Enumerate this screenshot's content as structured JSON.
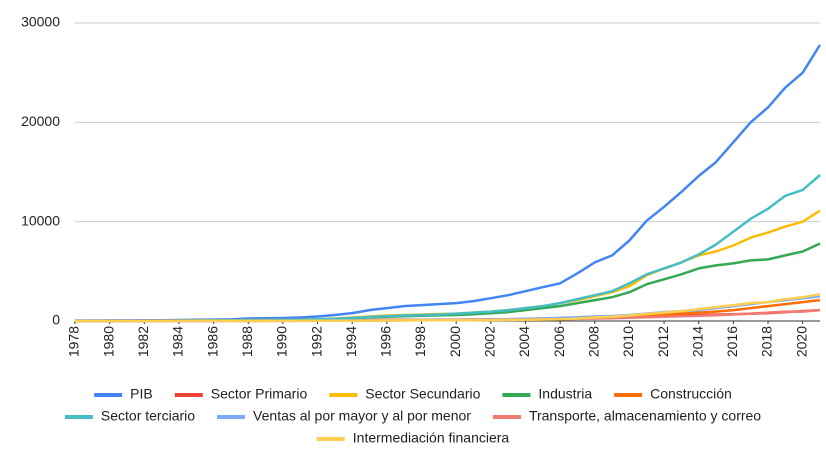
{
  "chart_data": {
    "type": "line",
    "x": [
      1978,
      1979,
      1980,
      1981,
      1982,
      1983,
      1984,
      1985,
      1986,
      1987,
      1988,
      1989,
      1990,
      1991,
      1992,
      1993,
      1994,
      1995,
      1996,
      1997,
      1998,
      1999,
      2000,
      2001,
      2002,
      2003,
      2004,
      2005,
      2006,
      2007,
      2008,
      2009,
      2010,
      2011,
      2012,
      2013,
      2014,
      2015,
      2016,
      2017,
      2018,
      2019,
      2020,
      2021
    ],
    "xlim": [
      1978,
      2021
    ],
    "xticks": [
      1978,
      1980,
      1982,
      1984,
      1986,
      1988,
      1990,
      1992,
      1994,
      1996,
      1998,
      2000,
      2002,
      2004,
      2006,
      2008,
      2010,
      2012,
      2014,
      2016,
      2018,
      2020
    ],
    "ylim": [
      0,
      30000
    ],
    "yticks": [
      0,
      10000,
      20000,
      30000
    ],
    "grid": true,
    "legend": "bottom",
    "series": [
      {
        "name": "PIB",
        "color": "#4285f4",
        "values": [
          50,
          55,
          60,
          65,
          75,
          85,
          100,
          120,
          140,
          160,
          250,
          280,
          300,
          350,
          450,
          600,
          800,
          1100,
          1300,
          1500,
          1600,
          1700,
          1800,
          2000,
          2300,
          2600,
          3000,
          3400,
          3800,
          4800,
          5900,
          6600,
          8100,
          10100,
          11500,
          13000,
          14600,
          16000,
          18000,
          20000,
          21500,
          23500,
          25000,
          27800
        ]
      },
      {
        "name": "Sector Primario",
        "color": "#ea4335",
        "values": [
          10,
          12,
          14,
          15,
          17,
          19,
          22,
          25,
          27,
          30,
          35,
          38,
          45,
          50,
          55,
          60,
          80,
          100,
          120,
          130,
          135,
          140,
          145,
          150,
          160,
          170,
          210,
          230,
          250,
          280,
          320,
          350,
          400,
          470,
          520,
          560,
          600,
          640,
          680,
          720,
          800,
          900,
          1000,
          1100
        ]
      },
      {
        "name": "Sector Secundario",
        "color": "#fbbc04",
        "values": [
          25,
          28,
          30,
          32,
          35,
          40,
          45,
          55,
          65,
          75,
          90,
          100,
          110,
          130,
          170,
          250,
          350,
          450,
          550,
          600,
          650,
          700,
          750,
          850,
          950,
          1100,
          1300,
          1500,
          1800,
          2100,
          2500,
          2900,
          3500,
          4600,
          5300,
          5900,
          6600,
          7000,
          7600,
          8400,
          8900,
          9500,
          10000,
          11100
        ]
      },
      {
        "name": "Industria",
        "color": "#34a853",
        "values": [
          20,
          22,
          24,
          26,
          28,
          32,
          36,
          42,
          50,
          60,
          70,
          80,
          90,
          110,
          140,
          200,
          280,
          360,
          430,
          480,
          520,
          560,
          600,
          680,
          780,
          900,
          1100,
          1300,
          1500,
          1800,
          2100,
          2400,
          2900,
          3700,
          4200,
          4700,
          5300,
          5600,
          5800,
          6100,
          6200,
          6600,
          7000,
          7800
        ]
      },
      {
        "name": "Construcción",
        "color": "#ff6d01",
        "values": [
          3,
          3,
          4,
          4,
          5,
          6,
          7,
          8,
          10,
          12,
          14,
          15,
          16,
          20,
          25,
          35,
          45,
          55,
          65,
          70,
          75,
          80,
          85,
          95,
          110,
          130,
          150,
          180,
          210,
          260,
          320,
          380,
          450,
          550,
          650,
          750,
          850,
          950,
          1100,
          1300,
          1500,
          1700,
          1900,
          2100
        ]
      },
      {
        "name": "Sector terciario",
        "color": "#46bdc6",
        "values": [
          18,
          20,
          22,
          25,
          28,
          30,
          40,
          50,
          60,
          70,
          90,
          100,
          110,
          130,
          170,
          220,
          300,
          400,
          480,
          550,
          600,
          650,
          750,
          850,
          950,
          1100,
          1300,
          1500,
          1800,
          2200,
          2600,
          3000,
          3800,
          4700,
          5300,
          5900,
          6700,
          7700,
          9000,
          10300,
          11300,
          12600,
          13200,
          14700
        ]
      },
      {
        "name": "Ventas al por mayor y al por menor",
        "color": "#7baaf7",
        "values": [
          5,
          5,
          6,
          6,
          7,
          8,
          10,
          12,
          14,
          16,
          20,
          22,
          25,
          30,
          35,
          45,
          60,
          75,
          90,
          100,
          110,
          120,
          130,
          140,
          160,
          180,
          220,
          260,
          310,
          380,
          450,
          500,
          600,
          750,
          900,
          1000,
          1100,
          1300,
          1500,
          1700,
          1900,
          2100,
          2300,
          2500
        ]
      },
      {
        "name": "Transporte, almacenamiento y correo",
        "color": "#f07b72",
        "values": [
          3,
          3,
          4,
          4,
          4,
          5,
          6,
          7,
          8,
          9,
          10,
          11,
          12,
          14,
          17,
          20,
          30,
          40,
          50,
          60,
          70,
          80,
          90,
          100,
          110,
          120,
          140,
          160,
          180,
          210,
          250,
          280,
          320,
          380,
          430,
          480,
          530,
          580,
          650,
          750,
          850,
          950,
          950,
          1100
        ]
      },
      {
        "name": "Intermediación financiera",
        "color": "#fcd04f",
        "values": [
          3,
          3,
          4,
          4,
          4,
          5,
          6,
          7,
          8,
          10,
          12,
          14,
          15,
          18,
          22,
          28,
          35,
          45,
          55,
          65,
          70,
          75,
          80,
          90,
          100,
          110,
          130,
          150,
          180,
          250,
          350,
          420,
          550,
          700,
          850,
          1000,
          1200,
          1400,
          1600,
          1800,
          1900,
          2200,
          2400,
          2700
        ]
      }
    ]
  }
}
